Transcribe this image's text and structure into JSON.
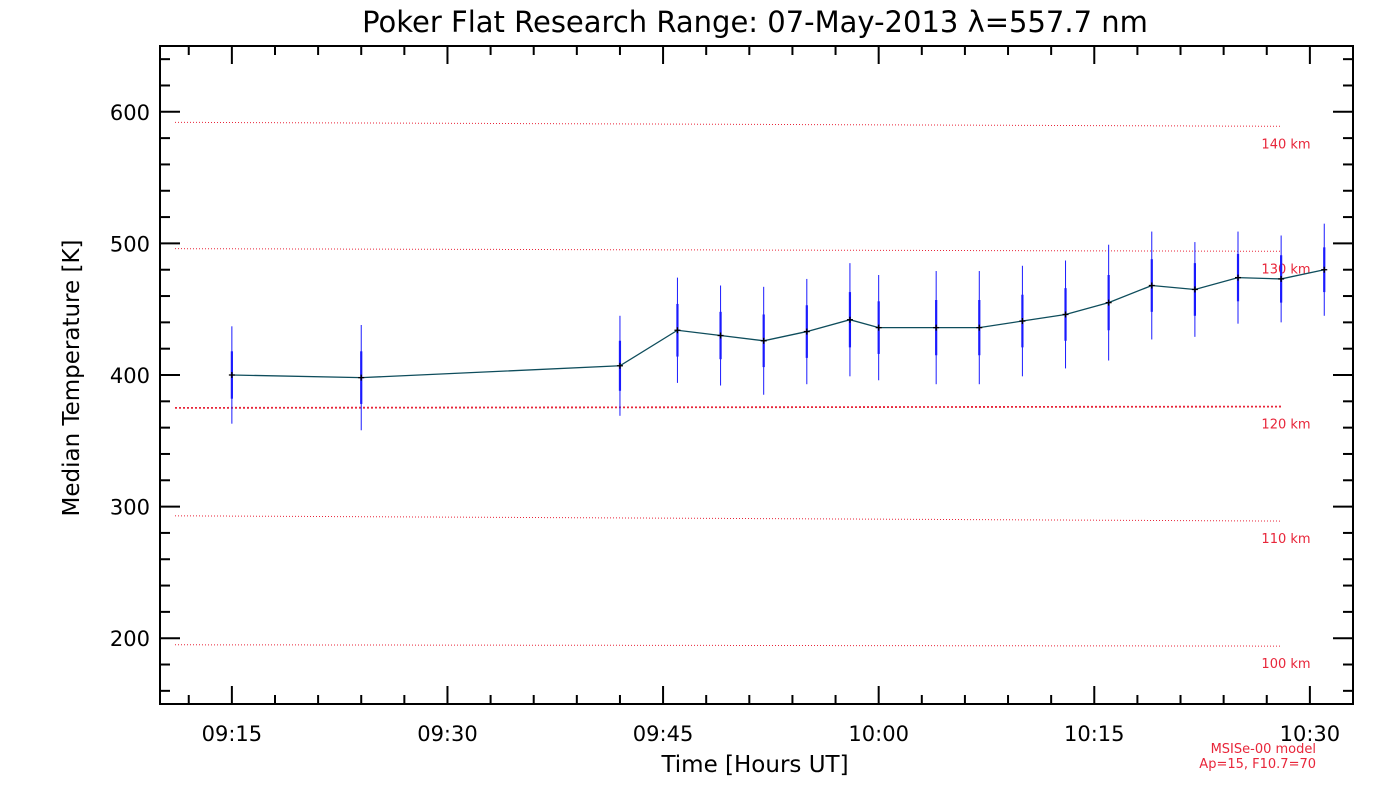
{
  "chart_data": {
    "type": "line",
    "title": "Poker Flat Research Range: 07-May-2013 λ=557.7 nm",
    "xlabel": "Time [Hours UT]",
    "ylabel": "Median Temperature [K]",
    "x_tick_labels": [
      "09:15",
      "09:30",
      "09:45",
      "10:00",
      "10:15",
      "10:30"
    ],
    "y_tick_labels": [
      "200",
      "300",
      "400",
      "500",
      "600"
    ],
    "xlim": [
      "09:10",
      "10:33"
    ],
    "ylim": [
      150,
      650
    ],
    "grid": false,
    "series": [
      {
        "x": [
          "09:15",
          "09:24",
          "09:42",
          "09:46",
          "09:49",
          "09:52",
          "09:55",
          "09:58",
          "10:00",
          "10:04",
          "10:07",
          "10:10",
          "10:13",
          "10:16",
          "10:19",
          "10:22",
          "10:25",
          "10:28",
          "10:31"
        ],
        "y": [
          400,
          398,
          407,
          434,
          430,
          426,
          433,
          442,
          436,
          436,
          436,
          441,
          446,
          455,
          468,
          465,
          474,
          473,
          480
        ],
        "err_inner": [
          18,
          20,
          19,
          20,
          18,
          20,
          20,
          21,
          20,
          21,
          21,
          20,
          20,
          21,
          20,
          20,
          18,
          18,
          17
        ],
        "err_outer": [
          37,
          40,
          38,
          40,
          38,
          41,
          40,
          43,
          40,
          43,
          43,
          42,
          41,
          44,
          41,
          36,
          35,
          33,
          35
        ],
        "line_color": "#0e4d5c",
        "error_color": "#1a1aff"
      }
    ],
    "reference_lines": [
      {
        "label": "140 km",
        "y_start": 592,
        "y_end": 589
      },
      {
        "label": "130 km",
        "y_start": 496,
        "y_end": 494
      },
      {
        "label": "120 km",
        "y_start": 375,
        "y_end": 376
      },
      {
        "label": "110 km",
        "y_start": 293,
        "y_end": 289
      },
      {
        "label": "100 km",
        "y_start": 195,
        "y_end": 194
      }
    ],
    "reference_color": "#e8263a",
    "annotations": [
      "MSISe-00 model",
      "Ap=15, F10.7=70"
    ]
  }
}
